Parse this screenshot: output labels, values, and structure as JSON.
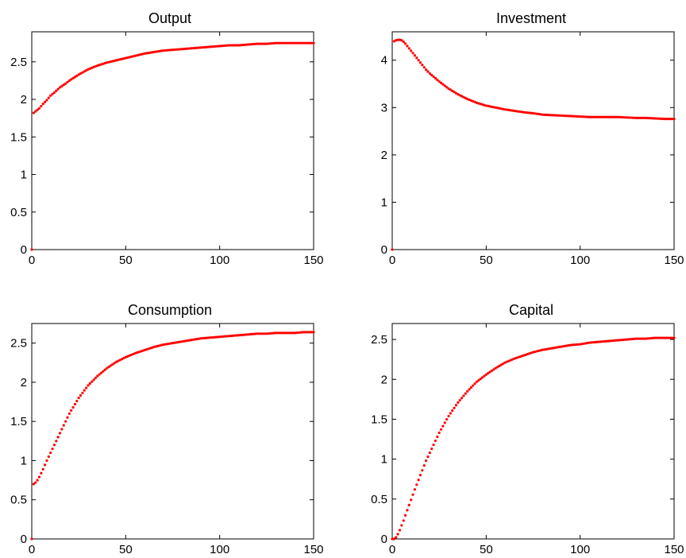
{
  "figure": {
    "background": "#ffffff",
    "marker_color": "#ff0000"
  },
  "chart_data": [
    {
      "type": "scatter",
      "title": "Output",
      "xlabel": "",
      "ylabel": "",
      "xlim": [
        0,
        150
      ],
      "ylim": [
        0,
        2.9
      ],
      "xticks": [
        0,
        50,
        100,
        150
      ],
      "yticks": [
        0,
        0.5,
        1,
        1.5,
        2,
        2.5
      ],
      "xtick_labels": [
        "0",
        "50",
        "100",
        "150"
      ],
      "ytick_labels": [
        "0",
        "0.5",
        "1",
        "1.5",
        "2",
        "2.5"
      ],
      "grid": false,
      "series": [
        {
          "color": "#ff0000",
          "x": [
            0,
            1,
            2,
            3,
            4,
            5,
            6,
            8,
            10,
            12,
            15,
            18,
            20,
            25,
            30,
            35,
            40,
            45,
            50,
            55,
            60,
            65,
            70,
            75,
            80,
            85,
            90,
            95,
            100,
            105,
            110,
            115,
            120,
            125,
            130,
            135,
            140,
            145,
            150
          ],
          "y": [
            0,
            1.82,
            1.84,
            1.86,
            1.88,
            1.91,
            1.94,
            1.99,
            2.05,
            2.09,
            2.16,
            2.21,
            2.25,
            2.33,
            2.4,
            2.45,
            2.49,
            2.52,
            2.55,
            2.58,
            2.61,
            2.63,
            2.65,
            2.66,
            2.67,
            2.68,
            2.69,
            2.7,
            2.71,
            2.72,
            2.72,
            2.73,
            2.74,
            2.74,
            2.75,
            2.75,
            2.75,
            2.75,
            2.75
          ]
        }
      ]
    },
    {
      "type": "scatter",
      "title": "Investment",
      "xlabel": "",
      "ylabel": "",
      "xlim": [
        0,
        150
      ],
      "ylim": [
        0,
        4.6
      ],
      "xticks": [
        0,
        50,
        100,
        150
      ],
      "yticks": [
        0,
        1,
        2,
        3,
        4
      ],
      "xtick_labels": [
        "0",
        "50",
        "100",
        "150"
      ],
      "ytick_labels": [
        "0",
        "1",
        "2",
        "3",
        "4"
      ],
      "grid": false,
      "series": [
        {
          "color": "#ff0000",
          "x": [
            0,
            1,
            2,
            3,
            4,
            5,
            6,
            7,
            8,
            10,
            12,
            14,
            16,
            18,
            20,
            25,
            30,
            35,
            40,
            45,
            50,
            55,
            60,
            65,
            70,
            75,
            80,
            85,
            90,
            95,
            100,
            105,
            110,
            115,
            120,
            125,
            130,
            135,
            140,
            145,
            150
          ],
          "y": [
            0,
            4.4,
            4.42,
            4.43,
            4.43,
            4.42,
            4.39,
            4.35,
            4.3,
            4.2,
            4.1,
            4.0,
            3.9,
            3.8,
            3.72,
            3.55,
            3.4,
            3.28,
            3.18,
            3.1,
            3.04,
            3.0,
            2.96,
            2.93,
            2.9,
            2.88,
            2.85,
            2.84,
            2.83,
            2.82,
            2.81,
            2.8,
            2.8,
            2.8,
            2.8,
            2.79,
            2.78,
            2.78,
            2.77,
            2.76,
            2.76
          ]
        }
      ]
    },
    {
      "type": "scatter",
      "title": "Consumption",
      "xlabel": "",
      "ylabel": "",
      "xlim": [
        0,
        150
      ],
      "ylim": [
        0,
        2.75
      ],
      "xticks": [
        0,
        50,
        100,
        150
      ],
      "yticks": [
        0,
        0.5,
        1,
        1.5,
        2,
        2.5
      ],
      "xtick_labels": [
        "0",
        "50",
        "100",
        "150"
      ],
      "ytick_labels": [
        "0",
        "0.5",
        "1",
        "1.5",
        "2",
        "2.5"
      ],
      "grid": false,
      "series": [
        {
          "color": "#ff0000",
          "x": [
            0,
            1,
            2,
            3,
            4,
            5,
            6,
            8,
            10,
            12,
            15,
            18,
            20,
            25,
            30,
            35,
            40,
            45,
            50,
            55,
            60,
            65,
            70,
            75,
            80,
            85,
            90,
            95,
            100,
            105,
            110,
            115,
            120,
            125,
            130,
            135,
            140,
            145,
            150
          ],
          "y": [
            0,
            0.7,
            0.72,
            0.75,
            0.79,
            0.84,
            0.89,
            1.0,
            1.1,
            1.2,
            1.35,
            1.5,
            1.6,
            1.8,
            1.96,
            2.08,
            2.18,
            2.26,
            2.32,
            2.37,
            2.41,
            2.45,
            2.48,
            2.5,
            2.52,
            2.54,
            2.56,
            2.57,
            2.58,
            2.59,
            2.6,
            2.61,
            2.62,
            2.62,
            2.63,
            2.63,
            2.63,
            2.64,
            2.64
          ]
        }
      ]
    },
    {
      "type": "scatter",
      "title": "Capital",
      "xlabel": "",
      "ylabel": "",
      "xlim": [
        0,
        150
      ],
      "ylim": [
        0,
        2.7
      ],
      "xticks": [
        0,
        50,
        100,
        150
      ],
      "yticks": [
        0,
        0.5,
        1,
        1.5,
        2,
        2.5
      ],
      "xtick_labels": [
        "0",
        "50",
        "100",
        "150"
      ],
      "ytick_labels": [
        "0",
        "0.5",
        "1",
        "1.5",
        "2",
        "2.5"
      ],
      "grid": false,
      "series": [
        {
          "color": "#ff0000",
          "x": [
            0,
            1,
            2,
            3,
            4,
            5,
            6,
            8,
            10,
            12,
            15,
            18,
            20,
            25,
            30,
            35,
            40,
            45,
            50,
            55,
            60,
            65,
            70,
            75,
            80,
            85,
            90,
            95,
            100,
            105,
            110,
            115,
            120,
            125,
            130,
            135,
            140,
            145,
            150
          ],
          "y": [
            0,
            0,
            0.02,
            0.06,
            0.11,
            0.17,
            0.23,
            0.36,
            0.49,
            0.62,
            0.8,
            0.98,
            1.08,
            1.33,
            1.54,
            1.71,
            1.85,
            1.97,
            2.06,
            2.14,
            2.21,
            2.26,
            2.3,
            2.34,
            2.37,
            2.39,
            2.41,
            2.43,
            2.44,
            2.46,
            2.47,
            2.48,
            2.49,
            2.5,
            2.51,
            2.51,
            2.52,
            2.52,
            2.52
          ]
        }
      ]
    }
  ]
}
